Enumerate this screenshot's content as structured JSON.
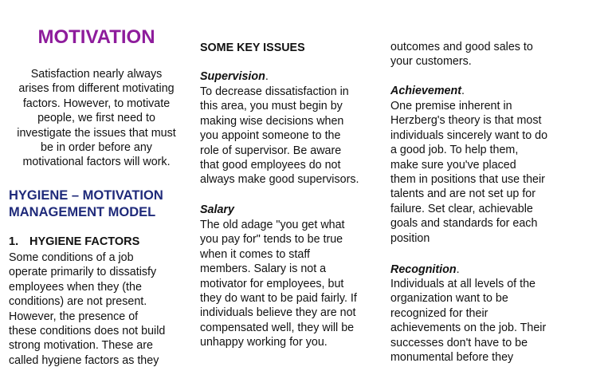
{
  "theme": {
    "title_color": "#8e1c9c",
    "heading_color": "#1f2a7a",
    "text_color": "#111111"
  },
  "left_column": {
    "title": "MOTIVATION",
    "intro_lines": [
      "Satisfaction nearly always",
      "arises from different motivating",
      "factors. However, to motivate",
      "people, we first need to",
      "investigate the issues that must",
      "be in order before any",
      "motivational factors will work."
    ],
    "section_heading_lines": [
      "HYGIENE – MOTIVATION",
      "MANAGEMENT MODEL"
    ],
    "subheading_number": "1.",
    "subheading_text": "HYGIENE FACTORS",
    "body_lines": [
      "Some conditions of a job",
      "operate primarily to dissatisfy",
      "employees when they (the",
      "conditions) are not present.",
      "However, the presence of",
      "these conditions does not build",
      "strong motivation. These are",
      "called hygiene factors as they"
    ]
  },
  "middle_column": {
    "heading": "SOME KEY ISSUES",
    "supervision": {
      "title": "Supervision",
      "period": ".",
      "lines": [
        "To decrease dissatisfaction in",
        "this area, you must begin by",
        "making wise decisions when",
        "you appoint someone to the",
        "role of supervisor. Be aware",
        "that good employees do not",
        "always make good supervisors."
      ]
    },
    "salary": {
      "title": "Salary",
      "lines": [
        "The old adage \"you get what",
        "you pay for\" tends to be true",
        "when it comes to staff",
        "members. Salary is not a",
        "motivator for employees, but",
        "they do want to be paid fairly. If",
        "individuals believe they are not",
        "compensated well, they will be",
        "unhappy working for you."
      ]
    }
  },
  "right_column": {
    "continued_lines": [
      "outcomes and good sales to",
      "your customers."
    ],
    "achievement": {
      "title": "Achievement",
      "period": ".",
      "lines": [
        "One premise inherent in",
        "Herzberg's theory is that most",
        "individuals sincerely want to do",
        "a good job. To help them,",
        "make sure you've placed",
        "them in positions that use their",
        "talents and are not set up for",
        "failure. Set clear, achievable",
        "goals and standards for each",
        "position"
      ]
    },
    "recognition": {
      "title": "Recognition",
      "period": ".",
      "lines": [
        "Individuals at all levels of the",
        "organization want to be",
        "recognized for their",
        "achievements on the job. Their",
        "successes don't have to be",
        "monumental before they"
      ]
    }
  }
}
